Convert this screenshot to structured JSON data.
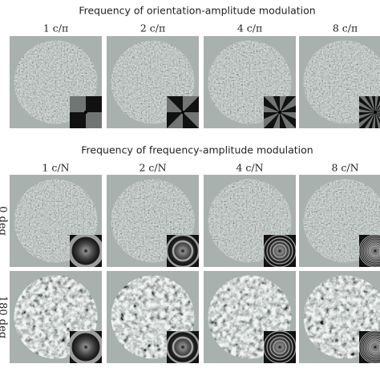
{
  "sections": [
    {
      "title": "Frequency of orientation-amplitude modulation",
      "columns": [
        "1 c/π",
        "2 c/π",
        "4 c/π",
        "8 c/π"
      ],
      "rows": []
    },
    {
      "title": "Frequency of frequency-amplitude modulation",
      "columns": [
        "1 c/N",
        "2 c/N",
        "4 c/N",
        "8 c/N"
      ],
      "rows": [
        "0 deg",
        "180 deg"
      ]
    }
  ]
}
